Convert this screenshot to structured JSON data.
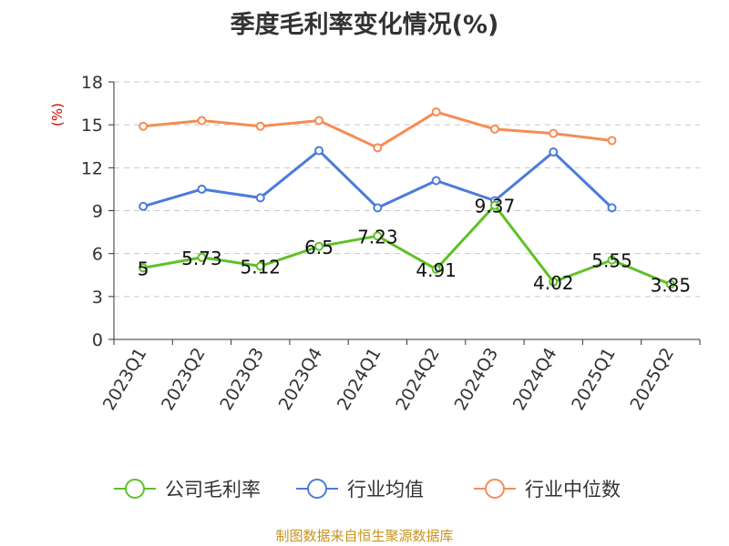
{
  "chart_data": {
    "type": "line",
    "title": "季度毛利率变化情况(%)",
    "ylabel": "(%)",
    "xlabel": "",
    "categories": [
      "2023Q1",
      "2023Q2",
      "2023Q3",
      "2023Q4",
      "2024Q1",
      "2024Q2",
      "2024Q3",
      "2024Q4",
      "2025Q1",
      "2025Q2"
    ],
    "ylim": [
      0,
      18
    ],
    "yticks": [
      0,
      3,
      6,
      9,
      12,
      15,
      18
    ],
    "grid": true,
    "legend_position": "bottom",
    "series": [
      {
        "name": "公司毛利率",
        "color": "#5ec126",
        "values": [
          5,
          5.73,
          5.12,
          6.5,
          7.23,
          4.91,
          9.37,
          4.02,
          5.55,
          3.85
        ],
        "labels": [
          "5",
          "5.73",
          "5.12",
          "6.5",
          "7.23",
          "4.91",
          "9.37",
          "4.02",
          "5.55",
          "3.85"
        ]
      },
      {
        "name": "行业均值",
        "color": "#4c7bdb",
        "values": [
          9.3,
          10.5,
          9.9,
          13.2,
          9.2,
          11.1,
          9.7,
          13.1,
          9.2,
          null
        ]
      },
      {
        "name": "行业中位数",
        "color": "#f58c55",
        "values": [
          14.9,
          15.3,
          14.9,
          15.3,
          13.4,
          15.9,
          14.7,
          14.4,
          13.9,
          null
        ]
      }
    ],
    "source": "制图数据来自恒生聚源数据库"
  }
}
